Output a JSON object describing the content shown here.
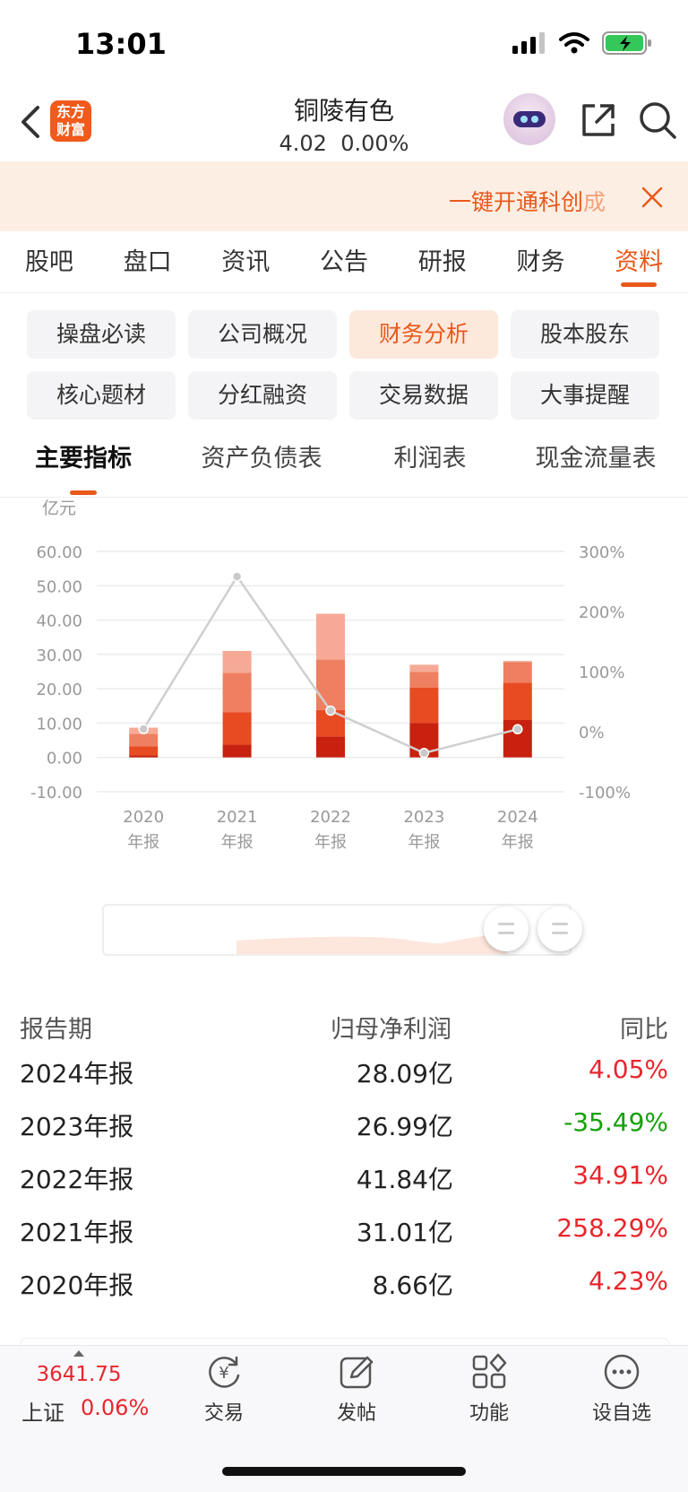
{
  "status_bar": {
    "time": "13:01"
  },
  "header": {
    "logo_line1": "东方",
    "logo_line2": "财富",
    "stock_name": "铜陵有色",
    "price": "4.02",
    "change": "0.00%"
  },
  "banner": {
    "text_main": "一键开通科创",
    "text_fade": "成"
  },
  "main_tabs": [
    {
      "label": "股吧"
    },
    {
      "label": "盘口"
    },
    {
      "label": "资讯"
    },
    {
      "label": "公告"
    },
    {
      "label": "研报"
    },
    {
      "label": "财务"
    },
    {
      "label": "资料",
      "active": true
    }
  ],
  "sub_buttons": [
    {
      "label": "操盘必读"
    },
    {
      "label": "公司概况"
    },
    {
      "label": "财务分析",
      "active": true
    },
    {
      "label": "股本股东"
    },
    {
      "label": "核心题材"
    },
    {
      "label": "分红融资"
    },
    {
      "label": "交易数据"
    },
    {
      "label": "大事提醒"
    }
  ],
  "sub_tabs": [
    {
      "label": "主要指标",
      "active": true
    },
    {
      "label": "资产负债表"
    },
    {
      "label": "利润表"
    },
    {
      "label": "现金流量表"
    }
  ],
  "chart_data": {
    "type": "bar",
    "unit_label": "亿元",
    "categories": [
      [
        "2020",
        "年报"
      ],
      [
        "2021",
        "年报"
      ],
      [
        "2022",
        "年报"
      ],
      [
        "2023",
        "年报"
      ],
      [
        "2024",
        "年报"
      ]
    ],
    "left_axis": {
      "ticks": [
        "60.00",
        "50.00",
        "40.00",
        "30.00",
        "20.00",
        "10.00",
        "0.00",
        "-10.00"
      ],
      "range": [
        -10,
        60
      ]
    },
    "right_axis": {
      "ticks": [
        "300%",
        "200%",
        "100%",
        "0%",
        "-100%"
      ],
      "range": [
        -100,
        300
      ]
    },
    "stacks": [
      [
        0.6,
        2.6,
        3.7,
        1.76
      ],
      [
        3.7,
        9.5,
        11.4,
        6.41
      ],
      [
        6.1,
        7.7,
        14.7,
        13.34
      ],
      [
        10.0,
        10.3,
        4.6,
        2.09
      ],
      [
        10.9,
        10.9,
        6.0,
        0.29
      ]
    ],
    "stack_colors": [
      "#c8210f",
      "#e84a22",
      "#ee7f60",
      "#f6aa96"
    ],
    "totals": [
      8.66,
      31.01,
      41.84,
      26.99,
      28.09
    ],
    "yoy": [
      4.23,
      258.29,
      34.91,
      -35.49,
      4.05
    ],
    "line_color": "#cfcfcf",
    "grid": true
  },
  "table": {
    "headers": [
      "报告期",
      "归母净利润",
      "同比"
    ],
    "rows": [
      {
        "period": "2024年报",
        "profit": "28.09亿",
        "yoy": "4.05%",
        "sign": "pos"
      },
      {
        "period": "2023年报",
        "profit": "26.99亿",
        "yoy": "-35.49%",
        "sign": "neg"
      },
      {
        "period": "2022年报",
        "profit": "41.84亿",
        "yoy": "34.91%",
        "sign": "pos"
      },
      {
        "period": "2021年报",
        "profit": "31.01亿",
        "yoy": "258.29%",
        "sign": "pos"
      },
      {
        "period": "2020年报",
        "profit": "8.66亿",
        "yoy": "4.23%",
        "sign": "pos"
      }
    ]
  },
  "bottom_bar": {
    "index_value": "3641.75",
    "index_name": "上证",
    "index_change": "0.06%",
    "nav": [
      {
        "label": "交易",
        "icon": "trade-icon"
      },
      {
        "label": "发帖",
        "icon": "post-icon"
      },
      {
        "label": "功能",
        "icon": "function-icon"
      },
      {
        "label": "设自选",
        "icon": "more-icon"
      }
    ]
  },
  "colors": {
    "accent": "#e8591a",
    "rise": "#e8262d",
    "fall": "#14a10a"
  }
}
